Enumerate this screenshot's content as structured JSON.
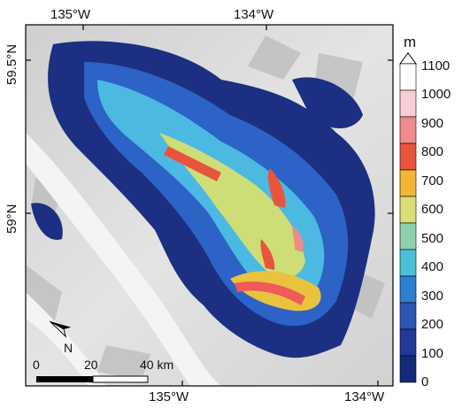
{
  "map": {
    "top_axis_labels": [
      "135°W",
      "134°W"
    ],
    "bottom_axis_labels": [
      "135°W",
      "134°W"
    ],
    "left_axis_labels": [
      "59.5°N",
      "59°N"
    ],
    "north_arrow_label": "N",
    "scale_bar": {
      "labels": [
        "0",
        "20",
        "40 km"
      ]
    }
  },
  "colorbar": {
    "unit": "m",
    "ticks": [
      "1100",
      "1000",
      "900",
      "800",
      "700",
      "600",
      "500",
      "400",
      "300",
      "200",
      "100",
      "0"
    ],
    "colors": [
      "#ffffff",
      "#f8cdd4",
      "#ef8b8b",
      "#e8553c",
      "#f2b634",
      "#d9de79",
      "#8fd0ae",
      "#4bc1d9",
      "#2e7fd0",
      "#2c56b3",
      "#213a97",
      "#152a78"
    ]
  }
}
